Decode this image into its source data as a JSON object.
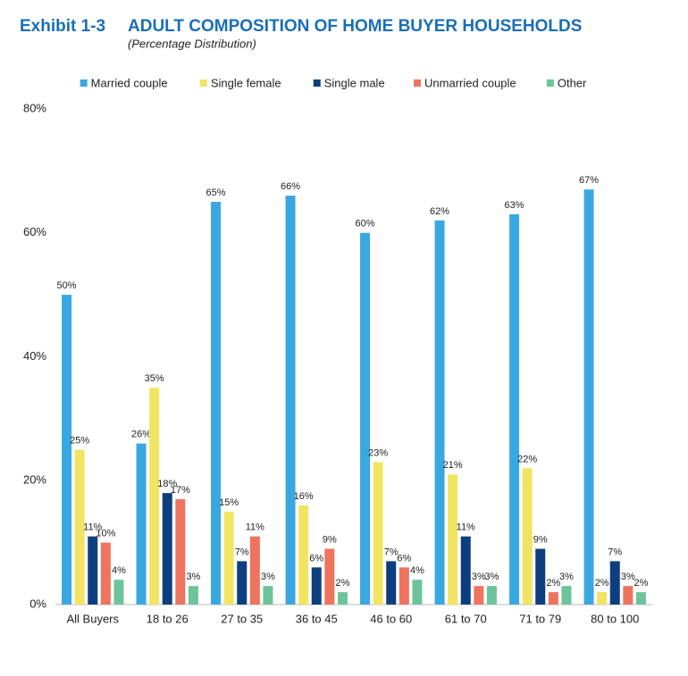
{
  "chart_data": {
    "type": "bar",
    "exhibit": "Exhibit 1-3",
    "title": "ADULT COMPOSITION OF HOME BUYER HOUSEHOLDS",
    "subtitle": "(Percentage Distribution)",
    "categories": [
      "All Buyers",
      "18 to 26",
      "27 to 35",
      "36 to 45",
      "46 to 60",
      "61 to 70",
      "71 to 79",
      "80 to 100"
    ],
    "series": [
      {
        "name": "Married couple",
        "color": "#3aa8e0",
        "values": [
          50,
          26,
          65,
          66,
          60,
          62,
          63,
          67
        ],
        "value_labels": [
          "50%",
          "26%",
          "65%",
          "66%",
          "60%",
          "62%",
          "63%",
          "67%"
        ]
      },
      {
        "name": "Single female",
        "color": "#f2e463",
        "values": [
          25,
          35,
          15,
          16,
          23,
          21,
          22,
          2
        ],
        "value_labels": [
          "25%",
          "35%",
          "15%",
          "16%",
          "23%",
          "21%",
          "22%",
          "2%"
        ]
      },
      {
        "name": "Single male",
        "color": "#0d3f7f",
        "values": [
          11,
          18,
          7,
          6,
          7,
          11,
          9,
          7
        ],
        "value_labels": [
          "11%",
          "18%",
          "7%",
          "6%",
          "7%",
          "11%",
          "9%",
          "7%"
        ]
      },
      {
        "name": "Unmarried couple",
        "color": "#ee7460",
        "values": [
          10,
          17,
          11,
          9,
          6,
          3,
          2,
          3
        ],
        "value_labels": [
          "10%",
          "17%",
          "11%",
          "9%",
          "6%",
          "3%",
          "2%",
          "3%"
        ]
      },
      {
        "name": "Other",
        "color": "#6cc59a",
        "values": [
          4,
          3,
          3,
          2,
          4,
          3,
          3,
          2
        ],
        "value_labels": [
          "4%",
          "3%",
          "3%",
          "2%",
          "4%",
          "3%",
          "3%",
          "2%"
        ]
      }
    ],
    "ylim": [
      0,
      80
    ],
    "yticks": [
      {
        "value": 0,
        "label": "0%"
      },
      {
        "value": 20,
        "label": "20%"
      },
      {
        "value": 40,
        "label": "40%"
      },
      {
        "value": 60,
        "label": "60%"
      },
      {
        "value": 80,
        "label": "80%"
      }
    ],
    "grid": false,
    "legend": "top"
  }
}
